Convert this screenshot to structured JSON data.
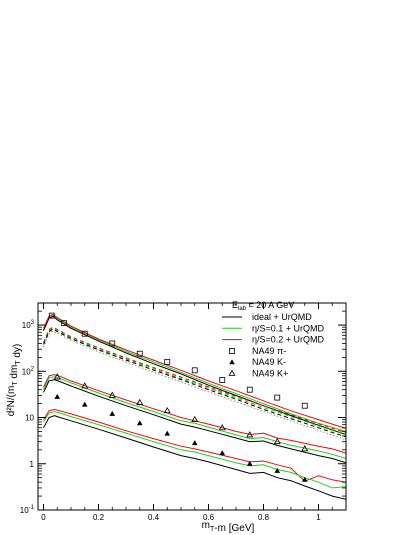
{
  "chart_data": {
    "type": "line",
    "title": "",
    "xlabel": "m_T-m [GeV]",
    "ylabel": "d²N/(m_T dm_T dy)",
    "xlim": [
      -0.02,
      1.1
    ],
    "ylim": [
      0.1,
      3000
    ],
    "y_scale": "log",
    "grid": false,
    "legend_position": "top-right",
    "x_ticks": [
      {
        "v": 0,
        "label": "0"
      },
      {
        "v": 0.2,
        "label": "0.2"
      },
      {
        "v": 0.4,
        "label": "0.4"
      },
      {
        "v": 0.6,
        "label": "0.6"
      },
      {
        "v": 0.8,
        "label": "0.8"
      },
      {
        "v": 1,
        "label": "1"
      }
    ],
    "y_ticks": [
      {
        "v": 0.1,
        "label": "10",
        "sup": "-1"
      },
      {
        "v": 1,
        "label": "1",
        "sup": ""
      },
      {
        "v": 10,
        "label": "10",
        "sup": ""
      },
      {
        "v": 100,
        "label": "10",
        "sup": "2"
      },
      {
        "v": 1000,
        "label": "10",
        "sup": "3"
      }
    ],
    "legend": {
      "header": "E",
      "header_sub": "lab",
      "header_rest": " = 20 A GeV",
      "entries": [
        {
          "kind": "line",
          "color": "#000000",
          "label": "ideal + UrQMD"
        },
        {
          "kind": "line",
          "color": "#22cc22",
          "label": "η/S=0.1 + UrQMD"
        },
        {
          "kind": "line",
          "color": "#dd1111",
          "label": "η/S=0.2 + UrQMD"
        },
        {
          "kind": "square",
          "color": "#000000",
          "label": "NA49 π-"
        },
        {
          "kind": "triangle",
          "color": "#000000",
          "label": "NA49 K-"
        },
        {
          "kind": "open-triangle",
          "color": "#000000",
          "label": "NA49 K+"
        }
      ]
    },
    "series": [
      {
        "name": "NA49 π-",
        "marker": "square",
        "color": "#000000",
        "x": [
          0.03,
          0.075,
          0.15,
          0.25,
          0.35,
          0.45,
          0.55,
          0.65,
          0.75,
          0.85,
          0.95
        ],
        "y": [
          1600,
          1100,
          650,
          400,
          240,
          160,
          105,
          65,
          40,
          27,
          18
        ]
      },
      {
        "name": "NA49 K+",
        "marker": "open-triangle",
        "color": "#000000",
        "x": [
          0.05,
          0.15,
          0.25,
          0.35,
          0.45,
          0.55,
          0.65,
          0.75,
          0.85,
          0.95
        ],
        "y": [
          75,
          48,
          30,
          21,
          14,
          9,
          6,
          4.2,
          3.0,
          2.1
        ]
      },
      {
        "name": "NA49 K-",
        "marker": "triangle",
        "color": "#000000",
        "x": [
          0.05,
          0.15,
          0.25,
          0.35,
          0.45,
          0.55,
          0.65,
          0.75,
          0.85,
          0.95
        ],
        "y": [
          28,
          19,
          12,
          7.5,
          4.5,
          2.8,
          1.7,
          1.0,
          0.7,
          0.45
        ]
      },
      {
        "name": "",
        "style": "solid",
        "color": "#22cc22",
        "x": [
          0,
          0.02,
          0.035,
          0.05,
          0.1,
          0.2,
          0.3,
          0.4,
          0.5,
          0.6,
          0.7,
          0.8,
          0.9,
          1.0,
          1.1
        ],
        "y": [
          800,
          1500,
          1650,
          1400,
          900,
          480,
          270,
          160,
          95,
          55,
          33,
          20,
          12,
          7.5,
          5
        ]
      },
      {
        "name": "",
        "style": "solid",
        "color": "#000000",
        "x": [
          0,
          0.02,
          0.035,
          0.05,
          0.1,
          0.2,
          0.3,
          0.4,
          0.5,
          0.6,
          0.7,
          0.8,
          0.9,
          1.0,
          1.1
        ],
        "y": [
          750,
          1400,
          1550,
          1300,
          850,
          450,
          250,
          145,
          88,
          50,
          30,
          18,
          11,
          6.8,
          4.3
        ]
      },
      {
        "name": "",
        "style": "solid",
        "color": "#dd1111",
        "x": [
          0,
          0.02,
          0.035,
          0.05,
          0.1,
          0.2,
          0.3,
          0.4,
          0.5,
          0.6,
          0.7,
          0.8,
          0.9,
          1.0,
          1.1
        ],
        "y": [
          850,
          1550,
          1700,
          1450,
          950,
          500,
          290,
          175,
          105,
          62,
          38,
          23,
          14,
          9,
          5.8
        ]
      },
      {
        "name": "",
        "style": "dashed",
        "color": "#dd1111",
        "x": [
          0,
          0.02,
          0.035,
          0.05,
          0.1,
          0.2,
          0.3,
          0.4,
          0.5,
          0.6,
          0.7,
          0.8,
          0.9,
          1.0,
          1.1
        ],
        "y": [
          420,
          800,
          900,
          800,
          560,
          320,
          195,
          120,
          75,
          46,
          29,
          18,
          11.5,
          7.3,
          4.7
        ]
      },
      {
        "name": "",
        "style": "dashed",
        "color": "#22cc22",
        "x": [
          0,
          0.02,
          0.035,
          0.05,
          0.1,
          0.2,
          0.3,
          0.4,
          0.5,
          0.6,
          0.7,
          0.8,
          0.9,
          1.0,
          1.1
        ],
        "y": [
          400,
          760,
          860,
          760,
          535,
          305,
          185,
          113,
          70,
          43,
          27,
          16.5,
          10.5,
          6.6,
          4.2
        ]
      },
      {
        "name": "",
        "style": "dashed",
        "color": "#000000",
        "x": [
          0,
          0.02,
          0.035,
          0.05,
          0.1,
          0.2,
          0.3,
          0.4,
          0.5,
          0.6,
          0.7,
          0.8,
          0.9,
          1.0,
          1.1
        ],
        "y": [
          380,
          720,
          820,
          720,
          510,
          290,
          175,
          106,
          66,
          40,
          25,
          15,
          9.5,
          6,
          3.8
        ]
      },
      {
        "name": "",
        "style": "dotted",
        "color": "#888888",
        "x": [
          0,
          0.02,
          0.035,
          0.05,
          0.1,
          0.2,
          0.3,
          0.4,
          0.5,
          0.6,
          0.7,
          0.8,
          0.9,
          1.0,
          1.1
        ],
        "y": [
          330,
          640,
          740,
          660,
          470,
          265,
          158,
          96,
          59,
          36,
          22,
          13.5,
          8.5,
          5.3,
          3.3
        ]
      },
      {
        "name": "",
        "style": "solid",
        "color": "#dd1111",
        "x": [
          0,
          0.02,
          0.04,
          0.06,
          0.1,
          0.2,
          0.3,
          0.4,
          0.5,
          0.55,
          0.6,
          0.7,
          0.75,
          0.8,
          0.85,
          0.9,
          1.0,
          1.05,
          1.1
        ],
        "y": [
          45,
          80,
          85,
          78,
          62,
          38,
          24,
          15.5,
          10,
          8.5,
          7.2,
          5.0,
          4.3,
          4.6,
          3.6,
          3.2,
          2.4,
          2.1,
          1.7
        ]
      },
      {
        "name": "",
        "style": "solid",
        "color": "#22cc22",
        "x": [
          0,
          0.02,
          0.04,
          0.06,
          0.1,
          0.2,
          0.3,
          0.4,
          0.5,
          0.55,
          0.6,
          0.7,
          0.75,
          0.8,
          0.85,
          0.9,
          1.0,
          1.05,
          1.1
        ],
        "y": [
          40,
          72,
          76,
          70,
          56,
          34,
          21,
          13.5,
          8.5,
          7.5,
          6.2,
          4.2,
          3.5,
          3.7,
          3.0,
          2.5,
          1.9,
          1.6,
          1.3
        ]
      },
      {
        "name": "",
        "style": "solid",
        "color": "#000000",
        "x": [
          0,
          0.02,
          0.04,
          0.06,
          0.1,
          0.2,
          0.3,
          0.4,
          0.5,
          0.55,
          0.6,
          0.7,
          0.75,
          0.8,
          0.85,
          0.9,
          1.0,
          1.05,
          1.1
        ],
        "y": [
          35,
          62,
          66,
          60,
          48,
          29,
          18,
          11.5,
          7.2,
          6.2,
          5.2,
          3.6,
          3.0,
          3.1,
          2.5,
          2.1,
          1.5,
          1.3,
          1.05
        ]
      },
      {
        "name": "",
        "style": "solid",
        "color": "#dd1111",
        "x": [
          0,
          0.02,
          0.04,
          0.06,
          0.1,
          0.2,
          0.3,
          0.4,
          0.5,
          0.55,
          0.6,
          0.7,
          0.75,
          0.8,
          0.85,
          0.9,
          0.95,
          1.0,
          1.05,
          1.1
        ],
        "y": [
          9,
          14,
          15,
          14,
          12,
          8,
          5.2,
          3.5,
          2.4,
          2.1,
          1.8,
          1.3,
          1.1,
          1.15,
          0.95,
          0.8,
          0.42,
          0.55,
          0.45,
          0.4
        ]
      },
      {
        "name": "",
        "style": "solid",
        "color": "#22cc22",
        "x": [
          0,
          0.02,
          0.04,
          0.06,
          0.1,
          0.2,
          0.3,
          0.4,
          0.5,
          0.55,
          0.6,
          0.7,
          0.75,
          0.8,
          0.85,
          0.9,
          0.95,
          1.0,
          1.05,
          1.1
        ],
        "y": [
          8,
          12.5,
          13.5,
          12.5,
          10.5,
          7,
          4.6,
          3.0,
          2.0,
          1.8,
          1.5,
          1.05,
          0.9,
          0.95,
          0.75,
          0.65,
          0.5,
          0.4,
          0.3,
          0.32
        ]
      },
      {
        "name": "",
        "style": "solid",
        "color": "#000000",
        "x": [
          0,
          0.02,
          0.04,
          0.06,
          0.1,
          0.2,
          0.3,
          0.4,
          0.5,
          0.55,
          0.6,
          0.7,
          0.75,
          0.8,
          0.85,
          0.9,
          0.95,
          1.0,
          1.05,
          1.1
        ],
        "y": [
          6,
          10,
          11,
          10,
          8.5,
          5.6,
          3.6,
          2.3,
          1.5,
          1.3,
          1.1,
          0.75,
          0.62,
          0.65,
          0.5,
          0.43,
          0.33,
          0.26,
          0.2,
          0.17
        ]
      }
    ]
  }
}
